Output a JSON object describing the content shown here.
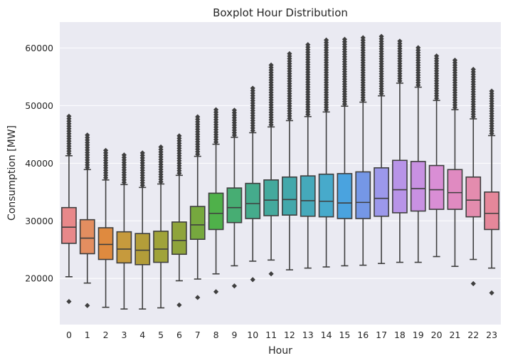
{
  "chart_data": {
    "type": "box",
    "title": "Boxplot Hour Distribution",
    "xlabel": "Hour",
    "ylabel": "Consumption [MW]",
    "ylim": [
      12000,
      64500
    ],
    "yticks": [
      "20000",
      "30000",
      "40000",
      "50000",
      "60000"
    ],
    "grid": true,
    "legend": "none",
    "categories": [
      "0",
      "1",
      "2",
      "3",
      "4",
      "5",
      "6",
      "7",
      "8",
      "9",
      "10",
      "11",
      "12",
      "13",
      "14",
      "15",
      "16",
      "17",
      "18",
      "19",
      "20",
      "21",
      "22",
      "23"
    ],
    "colors": [
      "#e8888a",
      "#e38e60",
      "#df8a3f",
      "#c69a3d",
      "#b39d39",
      "#a0a33a",
      "#8fa43b",
      "#76a83e",
      "#4fb14a",
      "#47ad73",
      "#45ab8c",
      "#44a99d",
      "#43a8ab",
      "#45a9bb",
      "#47aacb",
      "#4aa3df",
      "#7597e6",
      "#9c98eb",
      "#b894e8",
      "#c891e2",
      "#d98ed5",
      "#e08ac1",
      "#e48cae",
      "#e5879a"
    ],
    "boxes": [
      {
        "whislo": 20300,
        "q1": 26100,
        "med": 28900,
        "q3": 32300,
        "whishi": 41300,
        "flier_lo": [
          16000
        ],
        "flier_hi_top": 48400
      },
      {
        "whislo": 19200,
        "q1": 24300,
        "med": 27000,
        "q3": 30200,
        "whishi": 38900,
        "flier_lo": [
          15300
        ],
        "flier_hi_top": 45000
      },
      {
        "whislo": 15000,
        "q1": 23300,
        "med": 25900,
        "q3": 28800,
        "whishi": 37100,
        "flier_lo": [],
        "flier_hi_top": 42600
      },
      {
        "whislo": 14700,
        "q1": 22700,
        "med": 25100,
        "q3": 28100,
        "whishi": 36300,
        "flier_lo": [],
        "flier_hi_top": 41800
      },
      {
        "whislo": 14700,
        "q1": 22400,
        "med": 24900,
        "q3": 27800,
        "whishi": 35800,
        "flier_lo": [],
        "flier_hi_top": 42000
      },
      {
        "whislo": 14900,
        "q1": 22800,
        "med": 25100,
        "q3": 28200,
        "whishi": 36400,
        "flier_lo": [],
        "flier_hi_top": 43200
      },
      {
        "whislo": 19600,
        "q1": 24200,
        "med": 26600,
        "q3": 29800,
        "whishi": 37900,
        "flier_lo": [
          15400
        ],
        "flier_hi_top": 45100
      },
      {
        "whislo": 19900,
        "q1": 26800,
        "med": 29300,
        "q3": 32500,
        "whishi": 41200,
        "flier_lo": [
          16700
        ],
        "flier_hi_top": 48200
      },
      {
        "whislo": 20800,
        "q1": 28500,
        "med": 31300,
        "q3": 34800,
        "whishi": 43300,
        "flier_lo": [
          17700
        ],
        "flier_hi_top": 49400
      },
      {
        "whislo": 22200,
        "q1": 29700,
        "med": 32300,
        "q3": 35700,
        "whishi": 44500,
        "flier_lo": [
          18700
        ],
        "flier_hi_top": 49300
      },
      {
        "whislo": 23000,
        "q1": 30400,
        "med": 33000,
        "q3": 36500,
        "whishi": 45300,
        "flier_lo": [
          19800
        ],
        "flier_hi_top": 53300
      },
      {
        "whislo": 23200,
        "q1": 30900,
        "med": 33600,
        "q3": 37100,
        "whishi": 46300,
        "flier_lo": [
          20800
        ],
        "flier_hi_top": 57100
      },
      {
        "whislo": 21500,
        "q1": 31000,
        "med": 33700,
        "q3": 37600,
        "whishi": 47400,
        "flier_lo": [],
        "flier_hi_top": 59400
      },
      {
        "whislo": 21800,
        "q1": 30800,
        "med": 33500,
        "q3": 37800,
        "whishi": 48100,
        "flier_lo": [],
        "flier_hi_top": 60900
      },
      {
        "whislo": 22000,
        "q1": 30700,
        "med": 33400,
        "q3": 38100,
        "whishi": 48900,
        "flier_lo": [],
        "flier_hi_top": 61500
      },
      {
        "whislo": 22200,
        "q1": 30400,
        "med": 33100,
        "q3": 38200,
        "whishi": 49900,
        "flier_lo": [],
        "flier_hi_top": 61700
      },
      {
        "whislo": 22300,
        "q1": 30400,
        "med": 33200,
        "q3": 38500,
        "whishi": 50600,
        "flier_lo": [],
        "flier_hi_top": 61900
      },
      {
        "whislo": 22600,
        "q1": 30800,
        "med": 33900,
        "q3": 39200,
        "whishi": 51700,
        "flier_lo": [],
        "flier_hi_top": 62100
      },
      {
        "whislo": 22800,
        "q1": 31400,
        "med": 35400,
        "q3": 40500,
        "whishi": 53900,
        "flier_lo": [],
        "flier_hi_top": 61600
      },
      {
        "whislo": 22800,
        "q1": 31700,
        "med": 35600,
        "q3": 40300,
        "whishi": 53200,
        "flier_lo": [],
        "flier_hi_top": 60300
      },
      {
        "whislo": 23800,
        "q1": 32000,
        "med": 35400,
        "q3": 39600,
        "whishi": 50900,
        "flier_lo": [],
        "flier_hi_top": 58700
      },
      {
        "whislo": 22100,
        "q1": 32000,
        "med": 34900,
        "q3": 38900,
        "whishi": 49300,
        "flier_lo": [],
        "flier_hi_top": 58200
      },
      {
        "whislo": 23300,
        "q1": 30700,
        "med": 33600,
        "q3": 37600,
        "whishi": 47700,
        "flier_lo": [
          19100
        ],
        "flier_hi_top": 56700
      },
      {
        "whislo": 21800,
        "q1": 28500,
        "med": 31300,
        "q3": 35000,
        "whishi": 44800,
        "flier_lo": [
          17500
        ],
        "flier_hi_top": 52800
      }
    ]
  }
}
